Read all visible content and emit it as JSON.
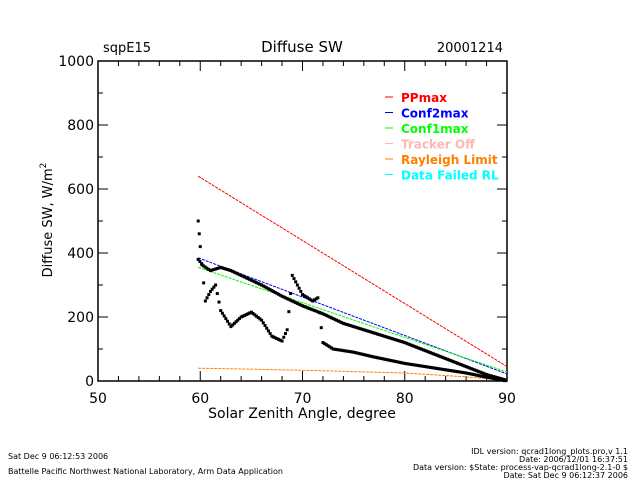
{
  "header": {
    "site": "sqpE15",
    "title": "Diffuse SW",
    "date": "20001214"
  },
  "footer": {
    "left_date": "Sat Dec  9 06:12:53 2006",
    "left_org": "Battelle Pacific Northwest National Laboratory, Arm Data Application",
    "right_line1": "IDL version: qcrad1long_plots.pro,v 1.1",
    "right_line2": "Date: 2006/12/01 16:37:51",
    "right_line3": "Data version: $State: process-vap-qcrad1long-2.1-0 $",
    "right_line4": "Date: Sat Dec  9 06:12:37 2006"
  },
  "chart_data": {
    "type": "scatter",
    "title": "Diffuse SW",
    "xlabel": "Solar Zenith Angle, degree",
    "ylabel": "Diffuse SW, W/m",
    "ylabel_superscript": "2",
    "xlim": [
      50,
      90
    ],
    "ylim": [
      0,
      1000
    ],
    "xticks": [
      50,
      60,
      70,
      80,
      90
    ],
    "yticks": [
      0,
      200,
      400,
      600,
      800,
      1000
    ],
    "grid": false,
    "legend_placement": "top-right",
    "legend": [
      {
        "name": "PPmax",
        "color": "#ff0000"
      },
      {
        "name": "Conf2max",
        "color": "#0000ff"
      },
      {
        "name": "Conf1max",
        "color": "#00ff00"
      },
      {
        "name": "Tracker Off",
        "color": "#ffb6b6"
      },
      {
        "name": "Rayleigh Limit",
        "color": "#ff8000"
      },
      {
        "name": "Data Failed RL",
        "color": "#00ffff"
      }
    ],
    "limit_lines": [
      {
        "name": "PPmax",
        "color": "#ff0000",
        "x": [
          59.8,
          90
        ],
        "y": [
          640,
          45
        ]
      },
      {
        "name": "Conf2max",
        "color": "#0000ff",
        "x": [
          59.8,
          90
        ],
        "y": [
          385,
          22
        ]
      },
      {
        "name": "Conf1max",
        "color": "#00ff00",
        "x": [
          59.8,
          90
        ],
        "y": [
          355,
          28
        ]
      },
      {
        "name": "Rayleigh Limit",
        "color": "#ff8000",
        "x": [
          59.8,
          65,
          72,
          80,
          85,
          90
        ],
        "y": [
          40,
          37,
          32,
          25,
          15,
          3
        ]
      }
    ],
    "measured_series": [
      {
        "color": "#000000",
        "x": [
          59.8,
          60.3,
          61,
          62,
          63,
          64,
          66,
          68,
          70,
          72,
          74,
          76,
          78,
          80,
          82,
          84,
          86,
          88,
          90
        ],
        "y": [
          380,
          360,
          345,
          355,
          345,
          330,
          300,
          265,
          235,
          210,
          180,
          160,
          140,
          120,
          95,
          70,
          45,
          20,
          2
        ]
      },
      {
        "color": "#000000",
        "x": [
          59.8,
          60,
          60.5,
          61,
          61.5,
          62,
          63,
          64,
          65,
          66,
          67,
          68,
          68.5,
          69,
          69.5,
          70,
          71,
          71.5,
          72,
          73,
          75,
          77,
          80,
          83,
          86,
          88,
          90
        ],
        "y": [
          500,
          420,
          250,
          280,
          300,
          220,
          170,
          200,
          215,
          190,
          140,
          125,
          160,
          330,
          300,
          270,
          250,
          260,
          120,
          100,
          90,
          75,
          55,
          40,
          25,
          12,
          0
        ]
      }
    ]
  }
}
